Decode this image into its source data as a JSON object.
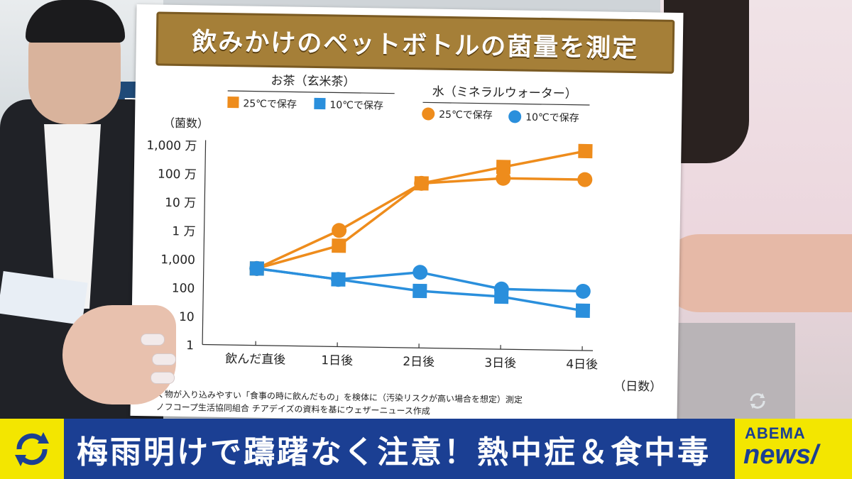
{
  "board": {
    "title": "飲みかけのペットボトルの菌量を測定",
    "tea_group_label": "お茶（玄米茶）",
    "water_group_label": "水（ミネラルウォーター）",
    "legend": {
      "tea_25": "25℃で保存",
      "tea_10": "10℃で保存",
      "water_25": "25℃で保存",
      "water_10": "10℃で保存"
    },
    "y_unit_label": "（菌数）",
    "x_unit_label": "（日数）",
    "note_line1": "く物が入り込みやすい「食事の時に飲んだもの」を検体に（汚染リスクが高い場合を想定）測定",
    "note_line2": "ノフコープ生活協同組合 チアデイズの資料を基にウェザーニュース作成"
  },
  "ticker": {
    "headline": "梅雨明けで躊躇なく注意！熱中症＆食中毒"
  },
  "logo": {
    "top": "ABEMA",
    "bottom": "news/"
  },
  "icons": {
    "ticker": "refresh-arrows-icon",
    "corner": "refresh-icon"
  },
  "colors": {
    "orange": "#ee8c1c",
    "blue": "#2a8fdc",
    "ticker_blue": "#1b3f93",
    "yellow": "#f3e600",
    "banner": "#a57f38"
  },
  "chart_data": {
    "type": "line",
    "title": "飲みかけのペットボトルの菌量を測定",
    "xlabel": "（日数）",
    "ylabel": "（菌数）",
    "y_scale": "log",
    "ylim": [
      1,
      10000000
    ],
    "categories": [
      "飲んだ直後",
      "1日後",
      "2日後",
      "3日後",
      "4日後"
    ],
    "y_tick_labels": [
      "1",
      "10",
      "100",
      "1,000",
      "1 万",
      "10 万",
      "100 万",
      "1,000 万"
    ],
    "y_tick_values": [
      1,
      10,
      100,
      1000,
      10000,
      100000,
      1000000,
      10000000
    ],
    "series": [
      {
        "name": "お茶（玄米茶） 25℃で保存",
        "marker": "square",
        "color": "#ee8c1c",
        "values": [
          500,
          3500,
          600000,
          2500000,
          10000000
        ]
      },
      {
        "name": "お茶（玄米茶） 10℃で保存",
        "marker": "square",
        "color": "#2a8fdc",
        "values": [
          500,
          230,
          100,
          70,
          25
        ]
      },
      {
        "name": "水（ミネラルウォーター） 25℃で保存",
        "marker": "circle",
        "color": "#ee8c1c",
        "values": [
          500,
          12000,
          600000,
          1000000,
          1000000
        ]
      },
      {
        "name": "水（ミネラルウォーター） 10℃で保存",
        "marker": "circle",
        "color": "#2a8fdc",
        "values": [
          500,
          230,
          450,
          130,
          120
        ]
      }
    ],
    "grid": false,
    "legend_position": "top"
  }
}
